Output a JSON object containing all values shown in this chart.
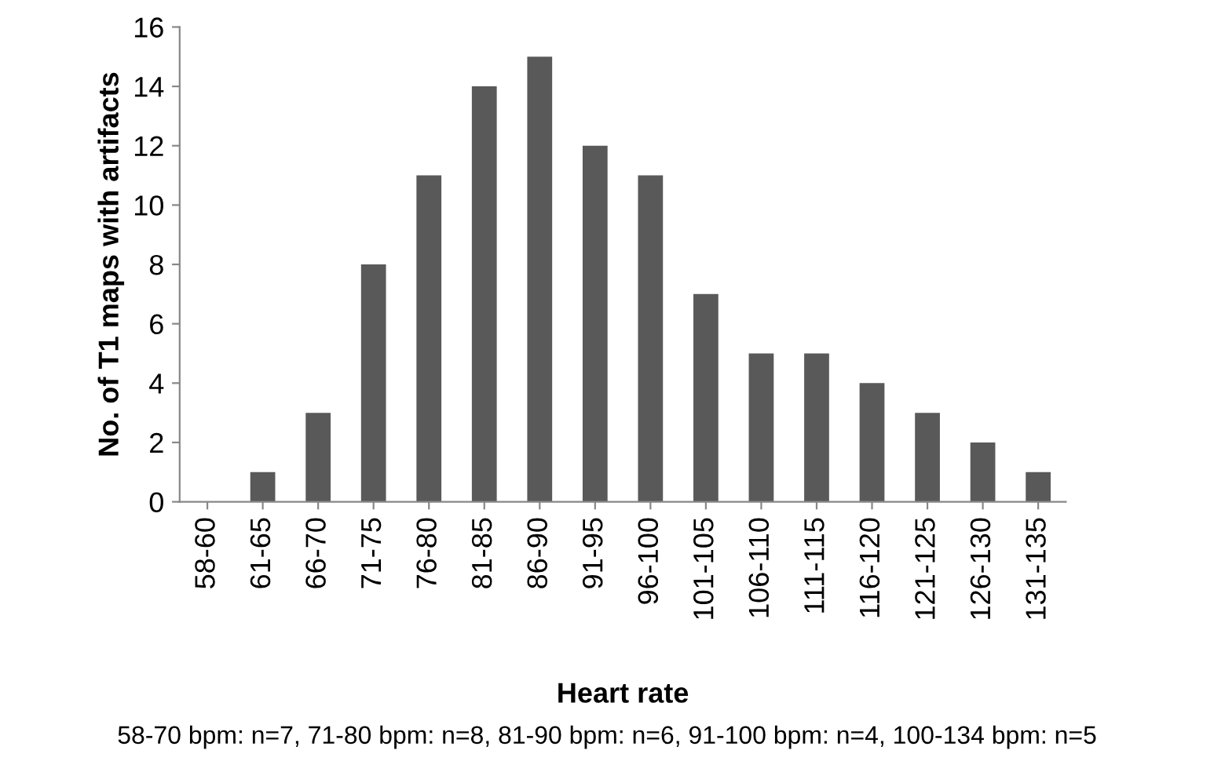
{
  "chart_data": {
    "type": "bar",
    "xlabel": "Heart rate",
    "ylabel": "No. of T1 maps with artifacts",
    "categories": [
      "58-60",
      "61-65",
      "66-70",
      "71-75",
      "76-80",
      "81-85",
      "86-90",
      "91-95",
      "96-100",
      "101-105",
      "106-110",
      "111-115",
      "116-120",
      "121-125",
      "126-130",
      "131-135"
    ],
    "values": [
      0,
      1,
      3,
      8,
      11,
      14,
      15,
      12,
      11,
      7,
      5,
      5,
      4,
      3,
      2,
      1
    ],
    "color": "#595959",
    "ylim": [
      0,
      16
    ],
    "yticks": [
      0,
      2,
      4,
      6,
      8,
      10,
      12,
      14,
      16
    ],
    "grid": false,
    "legend": false,
    "annotations": [
      "58-70 bpm: n=7, 71-80 bpm: n=8, 81-90 bpm: n=6, 91-100 bpm: n=4, 100-134 bpm: n=5"
    ]
  }
}
